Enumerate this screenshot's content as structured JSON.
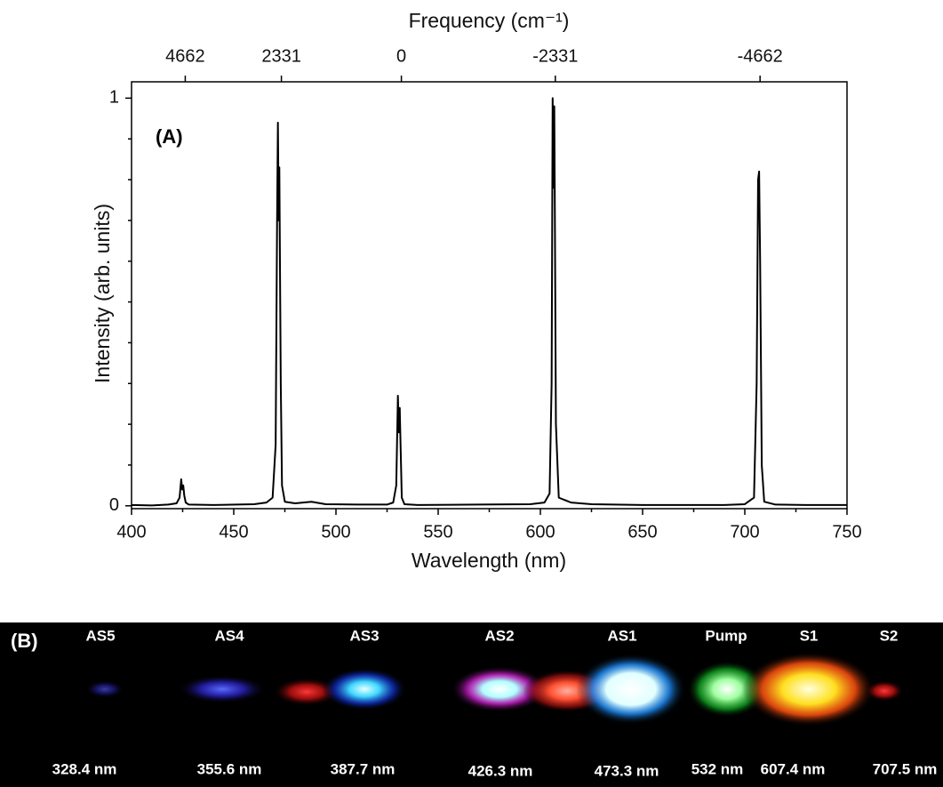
{
  "chart_data": {
    "type": "line",
    "annotation": "(A)",
    "xlabel": "Wavelength (nm)",
    "ylabel": "Intensity (arb. units)",
    "x2label": "Frequency (cm⁻¹)",
    "x": [
      400,
      410,
      418,
      422,
      423.5,
      424.3,
      424.8,
      425.3,
      425.8,
      426.5,
      428,
      440,
      460,
      466,
      469,
      470.5,
      471.2,
      471.6,
      472.0,
      472.3,
      472.6,
      473.0,
      473.6,
      475,
      480,
      488,
      495,
      510,
      525,
      528,
      529.5,
      530.3,
      530.8,
      531.2,
      531.6,
      532.2,
      533.5,
      540,
      570,
      595,
      602,
      604.5,
      605.5,
      606.0,
      606.5,
      606.8,
      607.1,
      607.6,
      609,
      615,
      625,
      650,
      690,
      700,
      704.5,
      705.8,
      706.5,
      707.0,
      707.5,
      708.3,
      709.5,
      715,
      730,
      750
    ],
    "values": [
      0.002,
      0.001,
      0.003,
      0.006,
      0.02,
      0.065,
      0.04,
      0.05,
      0.025,
      0.008,
      0.003,
      0.002,
      0.004,
      0.008,
      0.02,
      0.15,
      0.7,
      0.94,
      0.7,
      0.83,
      0.6,
      0.3,
      0.05,
      0.01,
      0.006,
      0.01,
      0.004,
      0.003,
      0.003,
      0.008,
      0.05,
      0.27,
      0.18,
      0.24,
      0.15,
      0.02,
      0.004,
      0.002,
      0.003,
      0.004,
      0.008,
      0.03,
      0.3,
      1.0,
      0.78,
      0.98,
      0.7,
      0.2,
      0.02,
      0.008,
      0.004,
      0.002,
      0.002,
      0.004,
      0.02,
      0.3,
      0.8,
      0.82,
      0.6,
      0.1,
      0.01,
      0.003,
      0.002,
      0.002
    ],
    "color": "#000000",
    "xlim": [
      400,
      750
    ],
    "xticks": [
      400,
      450,
      500,
      550,
      600,
      650,
      700,
      750
    ],
    "xminor": [
      425,
      475,
      525,
      575,
      625,
      675,
      725
    ],
    "ylim": [
      -0.007,
      1.04
    ],
    "yticks": [
      0,
      1
    ],
    "yminor": [
      0.1,
      0.2,
      0.3,
      0.4,
      0.5,
      0.6,
      0.7,
      0.8,
      0.9
    ],
    "x2lim": [
      6203,
      -5464
    ],
    "x2ticks": [
      4662,
      2331,
      0,
      -2331,
      -4662
    ],
    "grid": false
  },
  "panel_b": {
    "label": "(B)",
    "lines": [
      {
        "name": "AS5",
        "wavelength": "328.4 nm"
      },
      {
        "name": "AS4",
        "wavelength": "355.6 nm"
      },
      {
        "name": "AS3",
        "wavelength": "387.7 nm"
      },
      {
        "name": "AS2",
        "wavelength": "426.3 nm"
      },
      {
        "name": "AS1",
        "wavelength": "473.3 nm"
      },
      {
        "name": "Pump",
        "wavelength": "532 nm"
      },
      {
        "name": "S1",
        "wavelength": "607.4 nm"
      },
      {
        "name": "S2",
        "wavelength": "707.5 nm"
      }
    ]
  }
}
